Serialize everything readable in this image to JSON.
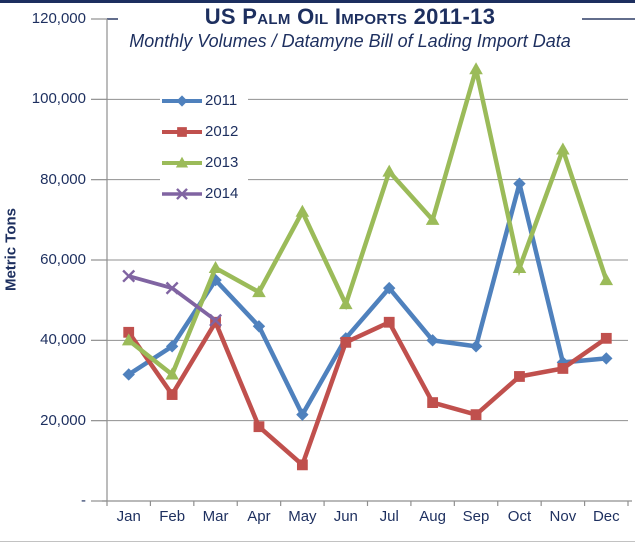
{
  "header": {
    "title": "US Palm Oil Imports 2011-13",
    "subtitle": "Monthly Volumes / Datamyne Bill of Lading Import Data"
  },
  "chart_data": {
    "type": "line",
    "title": "US Palm Oil Imports 2011-13",
    "subtitle": "Monthly Volumes / Datamyne Bill of Lading Import Data",
    "xlabel": "",
    "ylabel": "Metric Tons",
    "ylim": [
      0,
      120000
    ],
    "ytick_interval": 20000,
    "grid": true,
    "legend_position": "upper-left-inside",
    "categories": [
      "Jan",
      "Feb",
      "Mar",
      "Apr",
      "May",
      "Jun",
      "Jul",
      "Aug",
      "Sep",
      "Oct",
      "Nov",
      "Dec"
    ],
    "y_tick_labels": [
      "120,000",
      "100,000",
      "80,000",
      "60,000",
      "40,000",
      "20,000",
      "-"
    ],
    "series": [
      {
        "name": "2011",
        "color": "#4f81bd",
        "marker": "diamond",
        "values": [
          31500,
          38500,
          55000,
          43500,
          21500,
          40500,
          53000,
          40000,
          38500,
          79000,
          34500,
          35500
        ]
      },
      {
        "name": "2012",
        "color": "#c0504d",
        "marker": "square",
        "values": [
          42000,
          26500,
          44500,
          18500,
          9000,
          39500,
          44500,
          24500,
          21500,
          31000,
          33000,
          40500
        ]
      },
      {
        "name": "2013",
        "color": "#9bbb59",
        "marker": "triangle",
        "values": [
          40000,
          31500,
          58000,
          52000,
          72000,
          49000,
          82000,
          70000,
          107500,
          58000,
          87500,
          55000
        ]
      },
      {
        "name": "2014",
        "color": "#8064a2",
        "marker": "x",
        "values": [
          56000,
          53000,
          45000
        ]
      }
    ],
    "style": {
      "text_color": "#1d2f5f",
      "grid_color": "#909090",
      "axis_color": "#8f8f8f",
      "top_rule_color": "#2e3d66",
      "top_border_color": "#1d2f5f",
      "bottom_rule_color": "#c2c2c2",
      "background": "#ffffff"
    }
  }
}
